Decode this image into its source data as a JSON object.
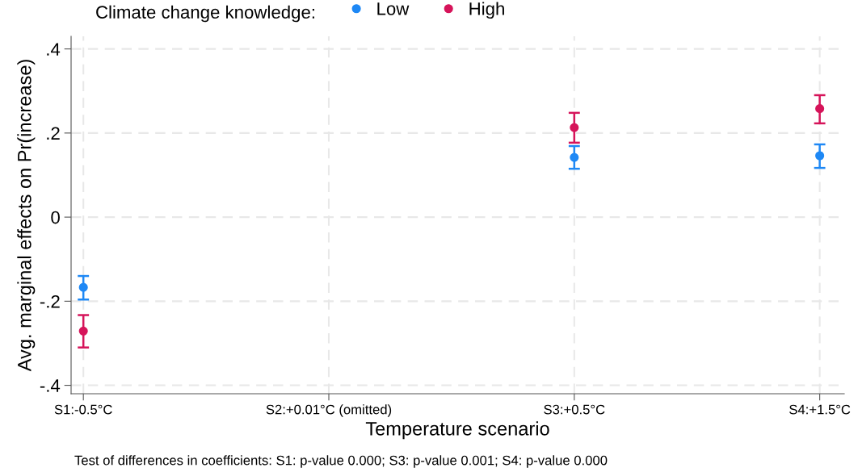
{
  "chart_data": {
    "type": "scatter",
    "xlabel": "Temperature scenario",
    "ylabel": "Avg. marginal effects on Pr(increase)",
    "legend_title": "Climate change knowledge:",
    "categories": [
      "S1:-0.5°C",
      "S2:+0.01°C (omitted)",
      "S3:+0.5°C",
      "S4:+1.5°C"
    ],
    "series": [
      {
        "name": "Low",
        "color": "#1e88f5",
        "values": [
          -0.167,
          null,
          0.142,
          0.146
        ],
        "errors": [
          [
            -0.196,
            -0.14
          ],
          null,
          [
            0.115,
            0.169
          ],
          [
            0.117,
            0.173
          ]
        ]
      },
      {
        "name": "High",
        "color": "#d6145a",
        "values": [
          -0.271,
          null,
          0.213,
          0.258
        ],
        "errors": [
          [
            -0.31,
            -0.233
          ],
          null,
          [
            0.177,
            0.248
          ],
          [
            0.223,
            0.29
          ]
        ]
      }
    ],
    "ylim": [
      -0.42,
      0.43
    ],
    "yticks": [
      {
        "value": -0.4,
        "label": "-.4"
      },
      {
        "value": -0.2,
        "label": "-.2"
      },
      0,
      {
        "value": 0.2,
        "label": ".2"
      },
      {
        "value": 0.4,
        "label": ".4"
      }
    ],
    "grid": true,
    "legend": "top",
    "marker": "circle",
    "annotations": [
      "Test of differences in coefficients: S1: p-value 0.000; S3: p-value 0.001; S4: p-value 0.000"
    ]
  }
}
